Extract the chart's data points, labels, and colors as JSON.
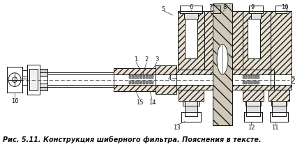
{
  "caption": "Рис. 5.11. Конструкция шиберного фильтра. Пояснения в тексте.",
  "bg_color": "#f5f5f0",
  "line_color": "#1a1a1a",
  "fig_width": 4.23,
  "fig_height": 2.17,
  "dpi": 100,
  "hatch_color": "#555555",
  "hatch_bg": "#d8d0c0"
}
